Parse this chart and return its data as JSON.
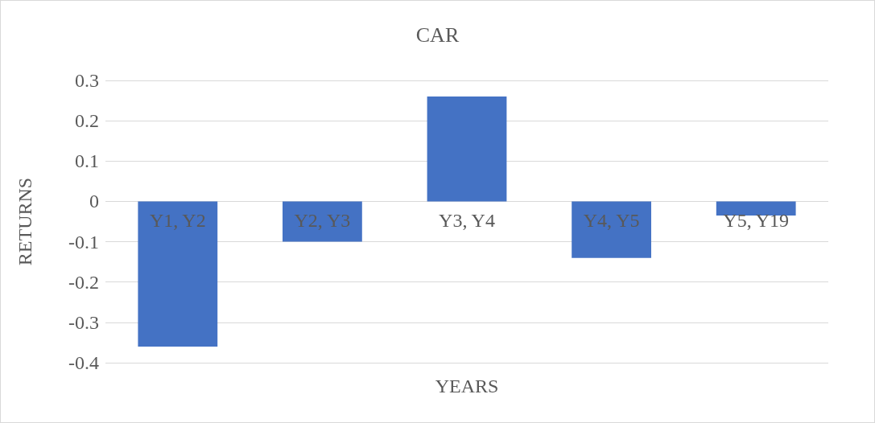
{
  "chart_data": {
    "type": "bar",
    "title": "CAR",
    "xlabel": "YEARS",
    "ylabel": "RETURNS",
    "categories": [
      "Y1, Y2",
      "Y2, Y3",
      "Y3, Y4",
      "Y4, Y5",
      "Y5, Y19"
    ],
    "values": [
      -0.36,
      -0.1,
      0.26,
      -0.14,
      -0.035
    ],
    "color": "#4472c4",
    "ylim": [
      -0.4,
      0.3
    ],
    "yticks": [
      -0.4,
      -0.3,
      -0.2,
      -0.1,
      0,
      0.1,
      0.2,
      0.3
    ],
    "grid": "y"
  }
}
